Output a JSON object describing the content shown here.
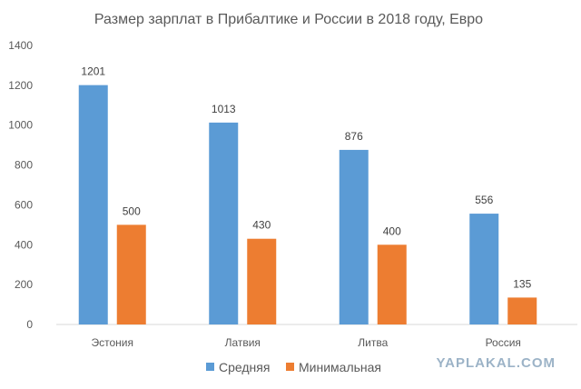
{
  "chart_data": {
    "type": "bar",
    "title": "Размер зарплат в Прибалтике и России в 2018 году, Евро",
    "categories": [
      "Эстония",
      "Латвия",
      "Литва",
      "Россия"
    ],
    "series": [
      {
        "name": "Средняя",
        "values": [
          1201,
          1013,
          876,
          556
        ],
        "color": "#5b9bd5"
      },
      {
        "name": "Минимальная",
        "values": [
          500,
          430,
          400,
          135
        ],
        "color": "#ed7d31"
      }
    ],
    "ylim": [
      0,
      1400
    ],
    "yticks": [
      "0",
      "200",
      "400",
      "600",
      "800",
      "1000",
      "1200",
      "1400"
    ],
    "grid": false,
    "legend_position": "bottom",
    "xlabel": "",
    "ylabel": ""
  },
  "watermark": "YAPLAKAL.COM"
}
